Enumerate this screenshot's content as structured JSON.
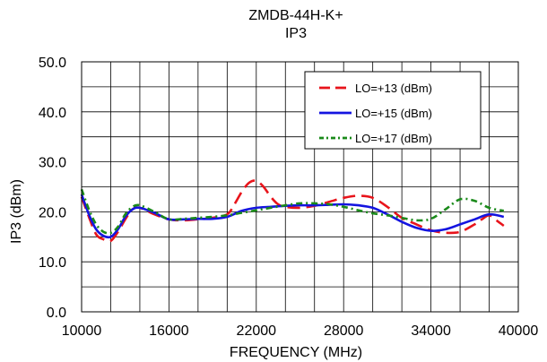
{
  "chart_data": {
    "type": "line",
    "title": "ZMDB-44H-K+",
    "subtitle": "IP3",
    "xlabel": "FREQUENCY (MHz)",
    "ylabel": "IP3 (dBm)",
    "xlim": [
      10000,
      40000
    ],
    "ylim": [
      0,
      50
    ],
    "x_ticks": [
      "10000",
      "16000",
      "22000",
      "28000",
      "34000",
      "40000"
    ],
    "y_ticks": [
      "0.0",
      "10.0",
      "20.0",
      "30.0",
      "40.0",
      "50.0"
    ],
    "grid": true,
    "legend_position": "top-right",
    "series": [
      {
        "name": "LO=+13 (dBm)",
        "color": "#e8141b",
        "dash": "dashed",
        "x": [
          10000,
          10500,
          11000,
          11500,
          12000,
          12500,
          13000,
          13500,
          14000,
          15000,
          16000,
          17000,
          18000,
          19000,
          20000,
          20500,
          21000,
          21500,
          22000,
          22500,
          23000,
          23500,
          24000,
          25000,
          26000,
          27000,
          28000,
          29000,
          30000,
          31000,
          32000,
          33000,
          34000,
          35000,
          36000,
          37000,
          37500,
          38000,
          38500,
          39000
        ],
        "values": [
          23.0,
          19.0,
          15.5,
          14.5,
          14.2,
          16.0,
          18.5,
          20.5,
          20.8,
          19.5,
          18.5,
          18.3,
          18.5,
          18.8,
          19.5,
          21.5,
          24.0,
          25.8,
          26.2,
          25.0,
          23.0,
          21.5,
          21.0,
          20.8,
          21.2,
          22.0,
          22.8,
          23.2,
          22.8,
          21.0,
          18.8,
          17.5,
          16.3,
          15.8,
          16.0,
          17.5,
          18.5,
          19.3,
          18.3,
          17.2
        ]
      },
      {
        "name": "LO=+15 (dBm)",
        "color": "#1414e0",
        "dash": "solid",
        "x": [
          10000,
          10500,
          11000,
          11500,
          12000,
          12500,
          13000,
          13500,
          14000,
          15000,
          16000,
          17000,
          18000,
          19000,
          20000,
          21000,
          22000,
          23000,
          24000,
          25000,
          26000,
          27000,
          28000,
          29000,
          30000,
          31000,
          32000,
          33000,
          34000,
          35000,
          36000,
          37000,
          38000,
          39000
        ],
        "values": [
          23.5,
          19.5,
          16.5,
          15.2,
          15.0,
          16.5,
          19.0,
          20.5,
          20.8,
          19.8,
          18.5,
          18.5,
          18.6,
          18.6,
          19.0,
          20.2,
          20.8,
          21.0,
          21.2,
          21.3,
          21.3,
          21.4,
          21.5,
          21.3,
          20.8,
          19.5,
          18.0,
          16.8,
          16.2,
          16.5,
          17.5,
          18.5,
          19.5,
          19.0
        ]
      },
      {
        "name": "LO=+17 (dBm)",
        "color": "#1a8a1a",
        "dash": "dashdot",
        "x": [
          10000,
          10500,
          11000,
          11500,
          12000,
          12500,
          13000,
          13500,
          14000,
          15000,
          16000,
          17000,
          18000,
          19000,
          20000,
          21000,
          22000,
          23000,
          24000,
          25000,
          26000,
          27000,
          28000,
          29000,
          30000,
          31000,
          32000,
          33000,
          34000,
          35000,
          36000,
          37000,
          38000,
          39000
        ],
        "values": [
          24.5,
          20.5,
          17.5,
          16.0,
          15.8,
          17.0,
          19.5,
          21.0,
          21.3,
          20.0,
          18.5,
          18.6,
          18.8,
          19.0,
          19.3,
          19.8,
          20.3,
          20.8,
          21.3,
          21.7,
          21.7,
          21.5,
          21.0,
          20.3,
          19.7,
          19.3,
          18.8,
          18.3,
          18.6,
          20.5,
          22.5,
          22.2,
          20.8,
          20.2
        ]
      }
    ]
  }
}
